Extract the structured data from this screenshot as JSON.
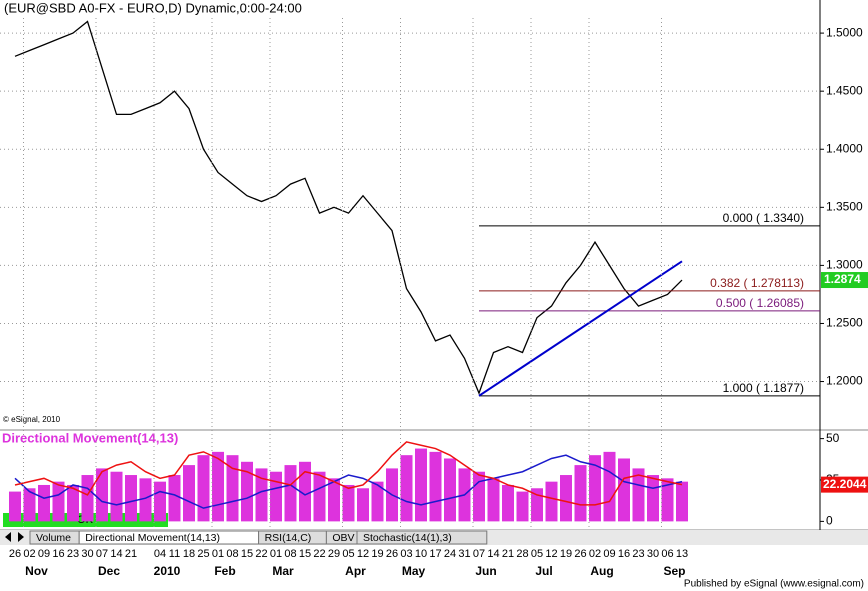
{
  "chart_data": [
    {
      "type": "line",
      "title": "(EUR@SBD A0-FX - EURO,D) Dynamic,0:00-24:00",
      "copyright": "© eSignal, 2010",
      "categories": [
        "26",
        "02",
        "09",
        "16",
        "23",
        "30",
        "07",
        "14",
        "21",
        null,
        "04",
        "11",
        "18",
        "25",
        "01",
        "08",
        "15",
        "22",
        "01",
        "08",
        "15",
        "22",
        "29",
        "05",
        "12",
        "19",
        "26",
        "03",
        "10",
        "17",
        "24",
        "31",
        "07",
        "14",
        "21",
        "28",
        "05",
        "12",
        "19",
        "26",
        "02",
        "09",
        "16",
        "23",
        "30",
        "06",
        "13"
      ],
      "month_labels": [
        null,
        "Nov",
        null,
        null,
        null,
        null,
        "Dec",
        null,
        null,
        null,
        "2010",
        null,
        null,
        null,
        "Feb",
        null,
        null,
        null,
        "Mar",
        null,
        null,
        null,
        null,
        "Apr",
        null,
        null,
        null,
        "May",
        null,
        null,
        null,
        null,
        "Jun",
        null,
        null,
        null,
        "Jul",
        null,
        null,
        null,
        "Aug",
        null,
        null,
        null,
        null,
        "Sep",
        null
      ],
      "series": [
        {
          "color": "#000000",
          "values": [
            1.48,
            1.485,
            1.49,
            1.495,
            1.5,
            1.51,
            1.47,
            1.43,
            1.43,
            1.435,
            1.44,
            1.45,
            1.435,
            1.4,
            1.38,
            1.37,
            1.36,
            1.355,
            1.36,
            1.37,
            1.375,
            1.345,
            1.35,
            1.345,
            1.36,
            1.345,
            1.33,
            1.28,
            1.26,
            1.235,
            1.24,
            1.22,
            1.19,
            1.225,
            1.23,
            1.225,
            1.255,
            1.265,
            1.285,
            1.3,
            1.32,
            1.3,
            1.28,
            1.265,
            1.27,
            1.275,
            1.2874
          ]
        }
      ],
      "last_price_color": "#22cc22",
      "ylim": [
        1.16,
        1.513
      ],
      "yticks": [
        {
          "value": 1.5,
          "label": "1.5000"
        },
        {
          "value": 1.45,
          "label": "1.4500"
        },
        {
          "value": 1.4,
          "label": "1.4000"
        },
        {
          "value": 1.35,
          "label": "1.3500"
        },
        {
          "value": 1.3,
          "label": "1.3000"
        },
        {
          "value": 1.25,
          "label": "1.2500"
        },
        {
          "value": 1.2,
          "label": "1.2000"
        }
      ],
      "grid": true,
      "fib_levels": [
        {
          "value": 1.334,
          "label": "0.000 ( 1.3340)",
          "color": "#000000"
        },
        {
          "value": 1.278113,
          "label": "0.382 ( 1.278113)",
          "color": "#8b1a1a"
        },
        {
          "value": 1.26085,
          "label": "0.500 ( 1.26085)",
          "color": "#7a1a7a"
        },
        {
          "value": 1.1877,
          "label": "1.000 ( 1.1877)",
          "color": "#000000"
        }
      ],
      "trendline": {
        "start": 32,
        "end": 46,
        "values": [
          1.1877,
          1.3035
        ],
        "color": "#0000cc"
      }
    },
    {
      "type": "indicator",
      "title": "Directional Movement(14,13)",
      "series": [
        {
          "color": "#dd33dd",
          "values": [
            18,
            20,
            22,
            24,
            22,
            28,
            32,
            30,
            28,
            26,
            24,
            28,
            34,
            40,
            42,
            40,
            36,
            32,
            30,
            34,
            36,
            30,
            26,
            22,
            20,
            24,
            32,
            40,
            44,
            42,
            38,
            32,
            30,
            26,
            22,
            18,
            20,
            24,
            28,
            34,
            40,
            42,
            38,
            32,
            28,
            26,
            24
          ]
        },
        {
          "color": "#1a1acc",
          "values": [
            26,
            18,
            14,
            16,
            22,
            20,
            12,
            10,
            12,
            14,
            18,
            16,
            12,
            8,
            10,
            12,
            14,
            18,
            20,
            22,
            16,
            20,
            24,
            28,
            26,
            22,
            16,
            12,
            10,
            12,
            14,
            16,
            24,
            26,
            28,
            30,
            34,
            38,
            40,
            36,
            34,
            30,
            24,
            22,
            20,
            22,
            24
          ]
        },
        {
          "color": "#ee1111",
          "values": [
            22,
            24,
            26,
            22,
            20,
            16,
            30,
            34,
            36,
            30,
            26,
            28,
            40,
            42,
            38,
            32,
            30,
            26,
            24,
            22,
            30,
            28,
            24,
            20,
            22,
            30,
            40,
            48,
            46,
            44,
            40,
            34,
            28,
            26,
            22,
            20,
            16,
            14,
            12,
            10,
            10,
            12,
            26,
            28,
            26,
            24,
            22.2044
          ]
        }
      ],
      "ylim": [
        -4,
        54
      ],
      "yticks": [
        50,
        25,
        0
      ]
    }
  ],
  "ui": {
    "tabs": [
      "Volume",
      "Directional Movement(14,13)",
      "RSI(14,C)",
      "OBV",
      "Stochastic(14(1),3)"
    ],
    "status": "OK",
    "footer": "Published by eSignal (www.esignal.com)"
  }
}
